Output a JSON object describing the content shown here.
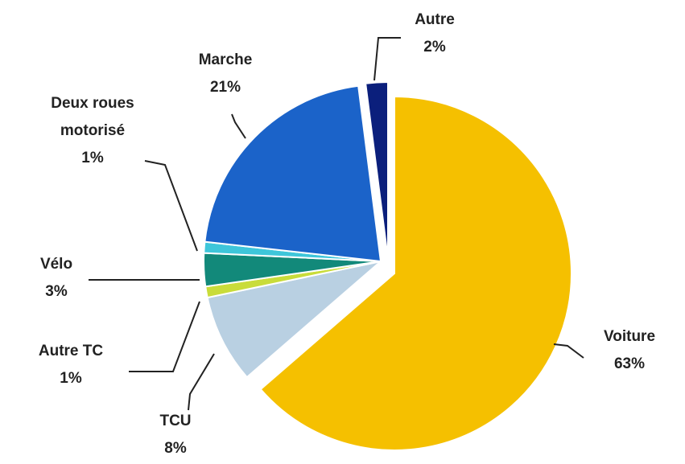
{
  "chart_data": {
    "type": "pie",
    "categories": [
      "Voiture",
      "TCU",
      "Autre TC",
      "Vélo",
      "Deux roues motorisé",
      "Marche",
      "Autre"
    ],
    "values": [
      63,
      8,
      1,
      3,
      1,
      21,
      2
    ],
    "value_labels": [
      "63%",
      "8%",
      "1%",
      "3%",
      "1%",
      "21%",
      "2%"
    ],
    "colors": [
      "#f5c000",
      "#b9d0e2",
      "#c9dc3a",
      "#12897a",
      "#3ec6da",
      "#1b63c9",
      "#0b1f7c"
    ]
  }
}
